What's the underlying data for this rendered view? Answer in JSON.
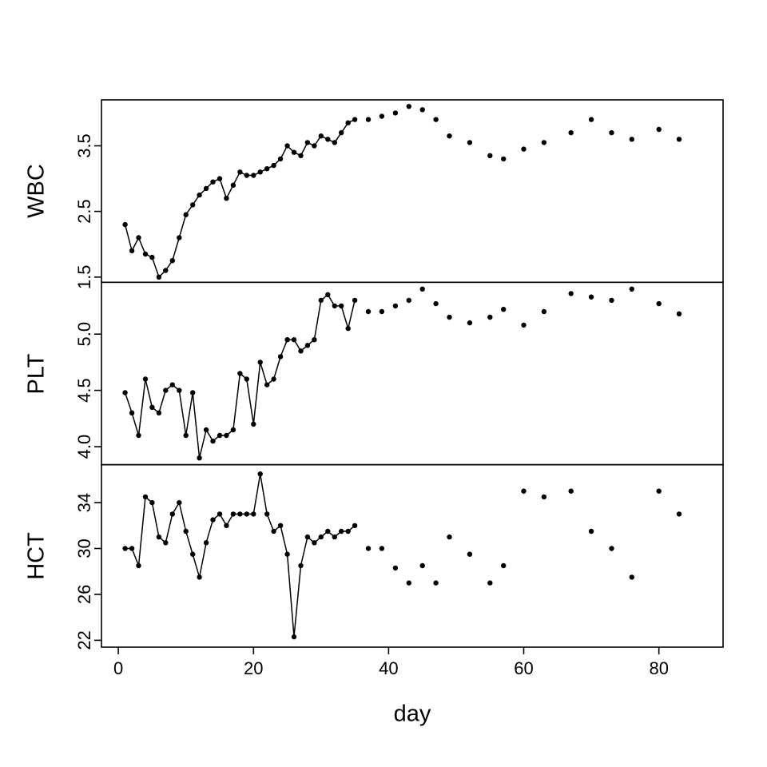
{
  "figure": {
    "background": "#ffffff",
    "foreground": "#000000"
  },
  "chart_data": {
    "type": "line",
    "title": "",
    "xlabel": "day",
    "xlim": [
      -2.5,
      89.5
    ],
    "x_ticks": [
      0,
      20,
      40,
      60,
      80
    ],
    "grid": "off",
    "legend": "none",
    "point_style": "filled-black-dot",
    "line_color": "#000000",
    "days": [
      1,
      2,
      3,
      4,
      5,
      6,
      7,
      8,
      9,
      10,
      11,
      12,
      13,
      14,
      15,
      16,
      17,
      18,
      19,
      20,
      21,
      22,
      23,
      24,
      25,
      26,
      27,
      28,
      29,
      30,
      31,
      32,
      33,
      34,
      35,
      37,
      39,
      41,
      43,
      45,
      47,
      49,
      52,
      55,
      57,
      60,
      63,
      67,
      70,
      73,
      76,
      80,
      83
    ],
    "panels": [
      {
        "ylabel": "WBC",
        "ytick_values": [
          1.5,
          2.5,
          3.5
        ],
        "ytick_labels": [
          "1.5",
          "2.5",
          "3.5"
        ],
        "ylim": [
          1.42,
          4.2
        ],
        "values": [
          2.3,
          1.9,
          2.1,
          1.85,
          1.8,
          1.5,
          1.6,
          1.75,
          2.1,
          2.45,
          2.6,
          2.75,
          2.85,
          2.95,
          3.0,
          2.7,
          2.9,
          3.1,
          3.05,
          3.05,
          3.1,
          3.15,
          3.2,
          3.3,
          3.5,
          3.4,
          3.35,
          3.55,
          3.5,
          3.65,
          3.6,
          3.55,
          3.7,
          3.85,
          3.9,
          3.9,
          3.95,
          4.0,
          4.1,
          4.05,
          3.9,
          3.65,
          3.55,
          3.35,
          3.3,
          3.45,
          3.55,
          3.7,
          3.9,
          3.7,
          3.6,
          3.75,
          3.6
        ]
      },
      {
        "ylabel": "PLT",
        "ytick_values": [
          4.0,
          4.5,
          5.0
        ],
        "ytick_labels": [
          "4.0",
          "4.5",
          "5.0"
        ],
        "ylim": [
          3.84,
          5.46
        ],
        "values": [
          4.48,
          4.3,
          4.1,
          4.6,
          4.35,
          4.3,
          4.5,
          4.55,
          4.5,
          4.1,
          4.48,
          3.9,
          4.15,
          4.05,
          4.1,
          4.1,
          4.15,
          4.65,
          4.6,
          4.2,
          4.75,
          4.55,
          4.6,
          4.8,
          4.95,
          4.95,
          4.85,
          4.9,
          4.95,
          5.3,
          5.35,
          5.25,
          5.25,
          5.05,
          5.3,
          5.2,
          5.2,
          5.25,
          5.3,
          5.4,
          5.27,
          5.15,
          5.1,
          5.15,
          5.22,
          5.08,
          5.2,
          5.36,
          5.33,
          5.3,
          5.4,
          5.27,
          5.18
        ]
      },
      {
        "ylabel": "HCT",
        "ytick_values": [
          22,
          26,
          30,
          34
        ],
        "ytick_labels": [
          "22",
          "26",
          "30",
          "34"
        ],
        "ylim": [
          21.4,
          37.3
        ],
        "values": [
          30,
          30,
          28.5,
          34.5,
          34,
          31,
          30.5,
          33,
          34,
          31.5,
          29.5,
          27.5,
          30.5,
          32.5,
          33,
          32,
          33,
          33,
          33,
          33,
          36.5,
          33,
          31.5,
          32,
          29.5,
          22.3,
          28.5,
          31,
          30.5,
          31,
          31.5,
          31,
          31.5,
          31.5,
          32,
          30,
          30,
          28.3,
          27,
          28.5,
          27,
          31,
          29.5,
          27,
          28.5,
          35,
          34.5,
          35,
          31.5,
          30,
          27.5,
          35,
          33
        ]
      }
    ]
  }
}
